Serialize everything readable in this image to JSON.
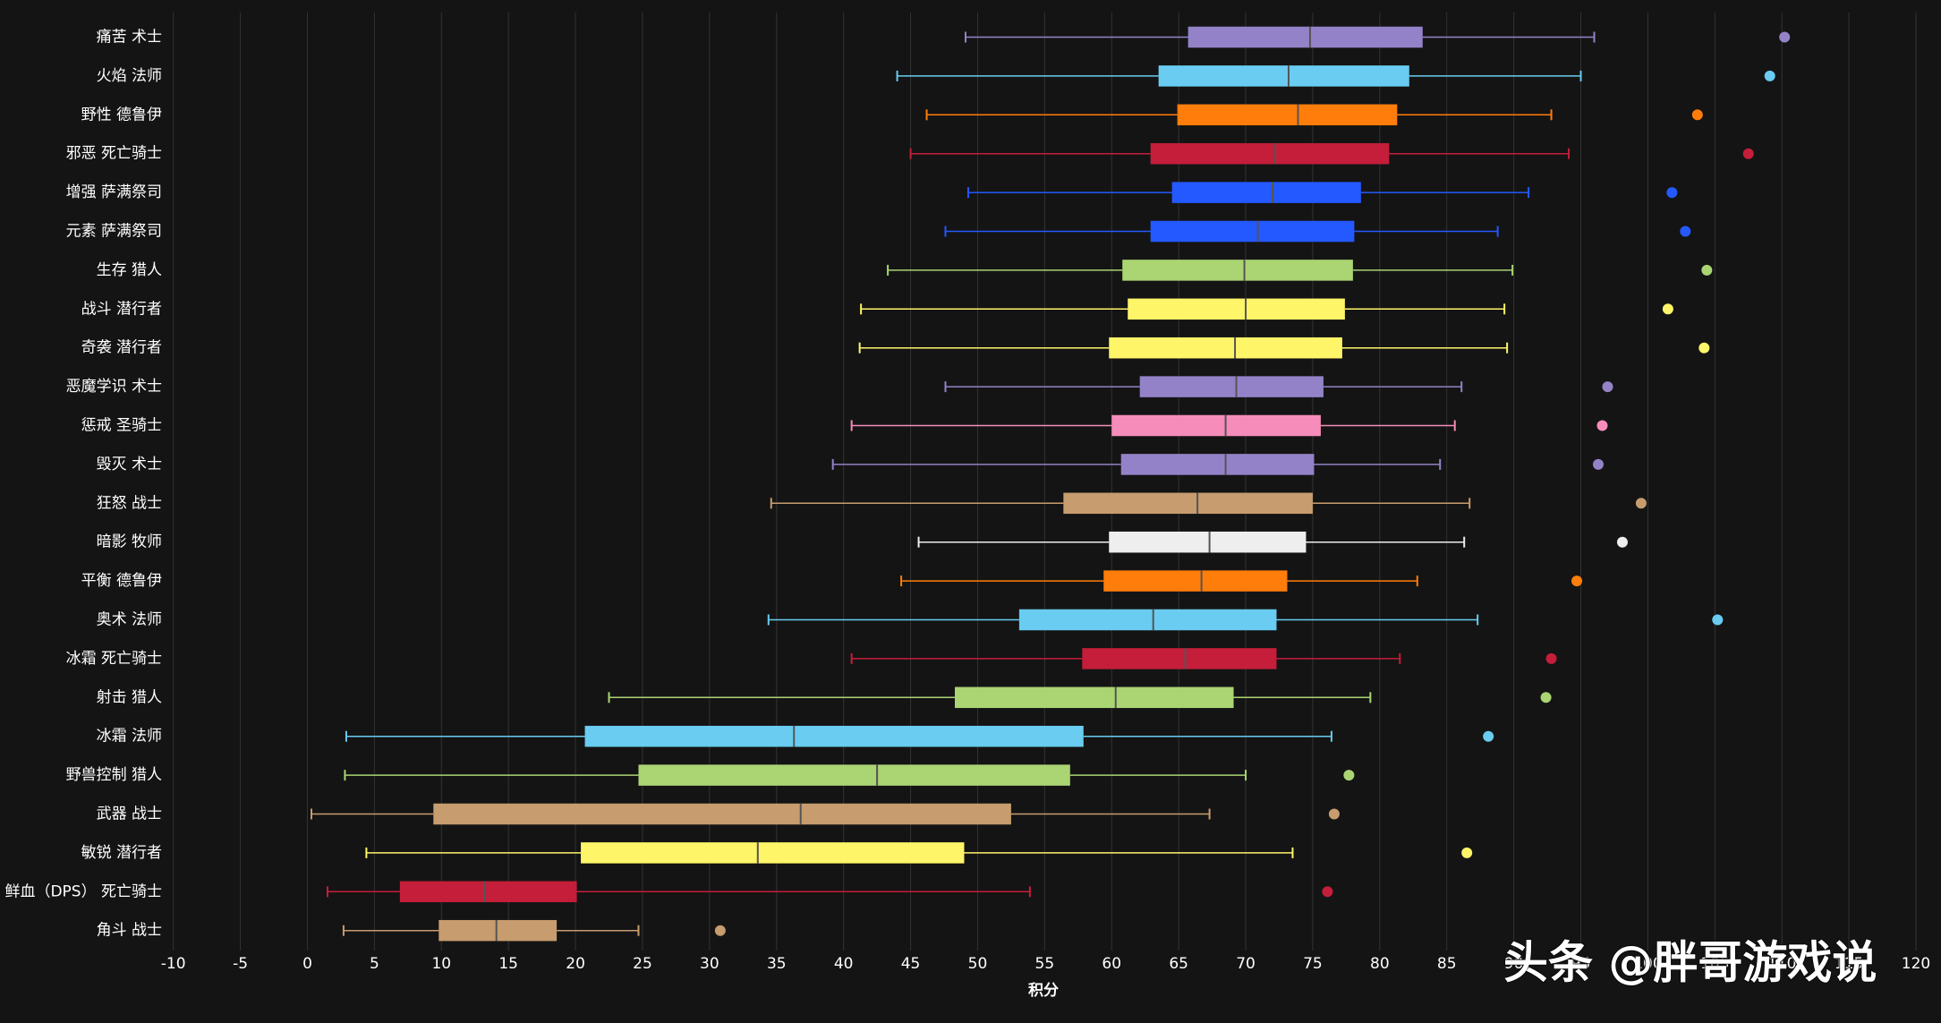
{
  "chart_data": {
    "type": "boxplot",
    "x_label": "积分",
    "watermark": "头条 @胖哥游戏说",
    "categories": [
      "痛苦 术士",
      "火焰 法师",
      "野性 德鲁伊",
      "邪恶 死亡骑士",
      "增强 萨满祭司",
      "元素 萨满祭司",
      "生存 猎人",
      "战斗 潜行者",
      "奇袭 潜行者",
      "恶魔学识 术士",
      "惩戒 圣骑士",
      "毁灭 术士",
      "狂怒 战士",
      "暗影 牧师",
      "平衡 德鲁伊",
      "奥术 法师",
      "冰霜 死亡骑士",
      "射击 猎人",
      "冰霜 法师",
      "野兽控制 猎人",
      "武器 战士",
      "敏锐 潜行者",
      "鲜血（DPS） 死亡骑士",
      "角斗 战士"
    ],
    "low": [
      49.1,
      44.0,
      46.2,
      45.0,
      49.3,
      47.6,
      43.3,
      41.3,
      41.2,
      47.6,
      40.6,
      39.2,
      34.6,
      45.6,
      44.3,
      34.4,
      40.6,
      22.5,
      2.9,
      2.8,
      0.3,
      4.4,
      1.5,
      2.7
    ],
    "q1": [
      65.7,
      63.5,
      64.9,
      62.9,
      64.5,
      62.9,
      60.8,
      61.2,
      59.8,
      62.1,
      60.0,
      60.7,
      56.4,
      59.8,
      59.4,
      53.1,
      57.8,
      48.3,
      20.7,
      24.7,
      9.4,
      20.4,
      6.9,
      9.8
    ],
    "median": [
      74.8,
      73.2,
      73.9,
      72.2,
      72.0,
      70.9,
      69.9,
      70.0,
      69.2,
      69.3,
      68.5,
      68.5,
      66.4,
      67.3,
      66.7,
      63.1,
      65.5,
      60.3,
      36.3,
      42.5,
      36.8,
      33.6,
      13.2,
      14.1
    ],
    "q3": [
      83.2,
      82.2,
      81.3,
      80.7,
      78.6,
      78.1,
      78.0,
      77.4,
      77.2,
      75.8,
      75.6,
      75.1,
      75.0,
      74.5,
      73.1,
      72.3,
      72.3,
      69.1,
      57.9,
      56.9,
      52.5,
      49.0,
      20.1,
      18.6
    ],
    "high": [
      96.0,
      95.0,
      92.8,
      94.1,
      91.1,
      88.8,
      89.9,
      89.3,
      89.5,
      86.1,
      85.6,
      84.5,
      86.7,
      86.3,
      82.8,
      87.3,
      81.5,
      79.3,
      76.4,
      70.0,
      67.3,
      73.5,
      53.9,
      24.7
    ],
    "outliers": [
      110.2,
      109.1,
      103.7,
      107.5,
      101.8,
      102.8,
      104.4,
      101.5,
      104.2,
      97.0,
      96.6,
      96.3,
      99.5,
      98.1,
      94.7,
      105.2,
      92.8,
      92.4,
      88.1,
      77.7,
      76.6,
      86.5,
      76.1,
      30.8
    ],
    "colors": [
      "#9482c9",
      "#69ccf0",
      "#ff7d0a",
      "#c41e3a",
      "#2459ff",
      "#2459ff",
      "#abd473",
      "#fff569",
      "#fff569",
      "#9482c9",
      "#f58cba",
      "#9482c9",
      "#c79c6e",
      "#eeeeee",
      "#ff7d0a",
      "#69ccf0",
      "#c41e3a",
      "#abd473",
      "#69ccf0",
      "#abd473",
      "#c79c6e",
      "#fff569",
      "#c41e3a",
      "#c79c6e"
    ],
    "xlim": [
      -10,
      120
    ],
    "xticks": [
      -10,
      -5,
      0,
      5,
      10,
      15,
      20,
      25,
      30,
      35,
      40,
      45,
      50,
      55,
      60,
      65,
      70,
      75,
      80,
      85,
      90,
      95,
      100,
      105,
      110,
      115,
      120
    ],
    "grid": true
  }
}
